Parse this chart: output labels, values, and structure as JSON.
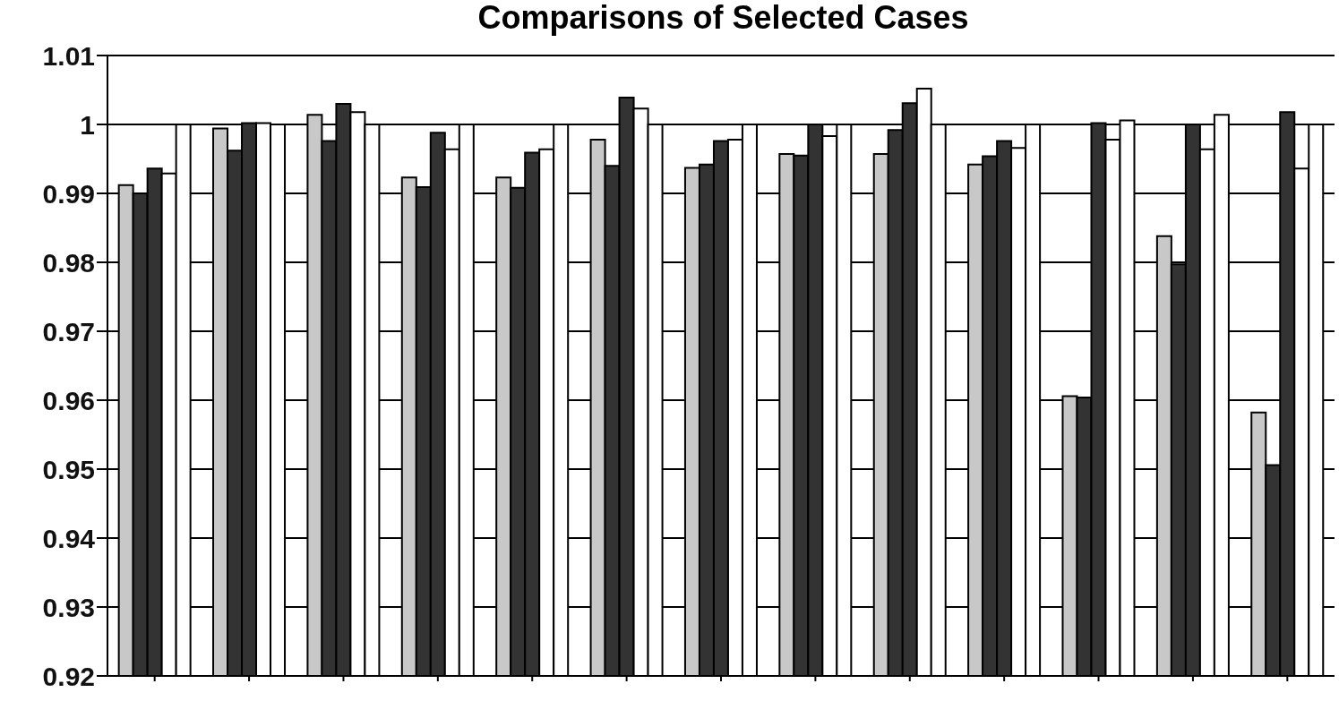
{
  "chart_data": {
    "type": "bar",
    "title": "Comparisons of Selected Cases",
    "categories": [
      null,
      null,
      null,
      null,
      null,
      null,
      null,
      null,
      null,
      null,
      null,
      null,
      null
    ],
    "series": [
      {
        "color": "#c8c8c8",
        "values": [
          0.9912,
          0.9994,
          1.0014,
          0.9923,
          0.9923,
          0.9978,
          0.9937,
          0.9957,
          0.9957,
          0.9942,
          0.9606,
          0.9838,
          0.9582
        ]
      },
      {
        "color": "#333333",
        "values": [
          0.99,
          0.9962,
          0.9976,
          0.9909,
          0.9908,
          0.994,
          0.9942,
          0.9955,
          0.9992,
          0.9954,
          0.9604,
          0.9797,
          0.9506
        ]
      },
      {
        "color": "#333333",
        "values": [
          0.9936,
          1.0002,
          1.003,
          0.9988,
          0.9959,
          1.0039,
          0.9976,
          1.0,
          1.0031,
          0.9976,
          1.0002,
          1.0,
          1.0018
        ]
      },
      {
        "color": "#ffffff",
        "values": [
          0.9929,
          1.0002,
          1.0018,
          0.9964,
          0.9964,
          1.0023,
          0.9978,
          0.9983,
          1.0052,
          0.9966,
          0.9978,
          0.9964,
          0.9936
        ]
      },
      {
        "color": "#ffffff",
        "values": [
          1.0,
          1.0,
          1.0,
          1.0,
          1.0,
          1.0,
          1.0,
          1.0,
          1.0,
          1.0,
          1.0006,
          1.0014,
          1.0
        ]
      }
    ],
    "ylim": [
      0.92,
      1.01
    ],
    "yticks": [
      0.92,
      0.93,
      0.94,
      0.95,
      0.96,
      0.97,
      0.98,
      0.99,
      1,
      1.01
    ],
    "grid": "y",
    "tick_labels": "y",
    "legend": false
  }
}
